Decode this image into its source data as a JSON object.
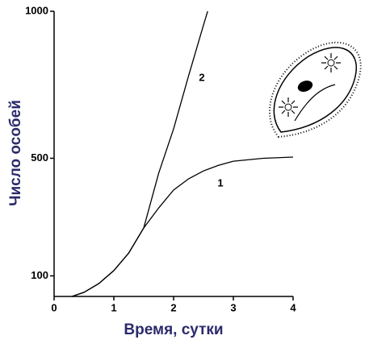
{
  "chart_data": {
    "type": "line",
    "xlabel": "Время, сутки",
    "ylabel": "Число особей",
    "xlim": [
      0,
      4
    ],
    "xticks": [
      0,
      1,
      2,
      3,
      4
    ],
    "ylim": [
      30,
      1000
    ],
    "yticks": [
      100,
      500,
      1000
    ],
    "series": [
      {
        "name": "1",
        "color": "#000000",
        "x": [
          0.3,
          0.5,
          0.75,
          1,
          1.25,
          1.5,
          1.75,
          2,
          2.25,
          2.5,
          2.75,
          3,
          3.5,
          4
        ],
        "values": [
          30,
          44,
          74,
          118,
          178,
          263,
          331,
          392,
          430,
          457,
          476,
          490,
          500,
          504
        ]
      },
      {
        "name": "2",
        "color": "#000000",
        "x": [
          0.3,
          0.5,
          0.75,
          1,
          1.25,
          1.5,
          1.75,
          2,
          2.25,
          2.5,
          2.57
        ],
        "values": [
          30,
          44,
          74,
          118,
          178,
          263,
          449,
          600,
          780,
          953,
          1000
        ]
      }
    ]
  }
}
